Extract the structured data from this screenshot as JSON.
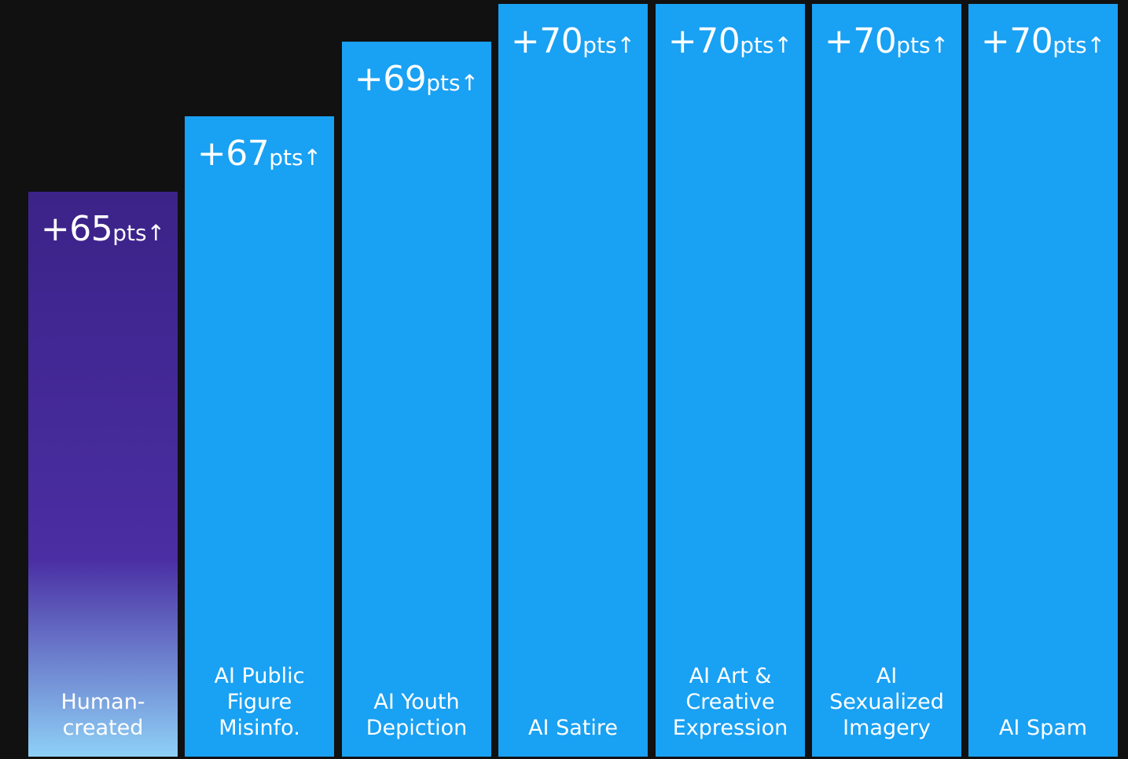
{
  "colors": {
    "background": "#111111",
    "bar_default": "#19a1f3",
    "bar_highlight_top": "#3b2388",
    "bar_highlight_mid": "#4a2ea3",
    "bar_highlight_bottom": "#8ed0f6",
    "text": "#ffffff"
  },
  "chart_data": {
    "type": "bar",
    "grid": false,
    "legend": "none",
    "title": "",
    "xlabel": "",
    "ylabel": "",
    "ylim": [
      0,
      70
    ],
    "value_prefix": "+",
    "value_unit": "pts",
    "value_arrow": "↑",
    "categories": [
      "Human-\ncreated",
      "AI Public\nFigure\nMisinfo.",
      "AI Youth\nDepiction",
      "AI Satire",
      "AI Art &\nCreative\nExpression",
      "AI\nSexualized\nImagery",
      "AI Spam"
    ],
    "values": [
      65,
      67,
      69,
      70,
      70,
      70,
      70
    ],
    "highlight_index": 0
  }
}
